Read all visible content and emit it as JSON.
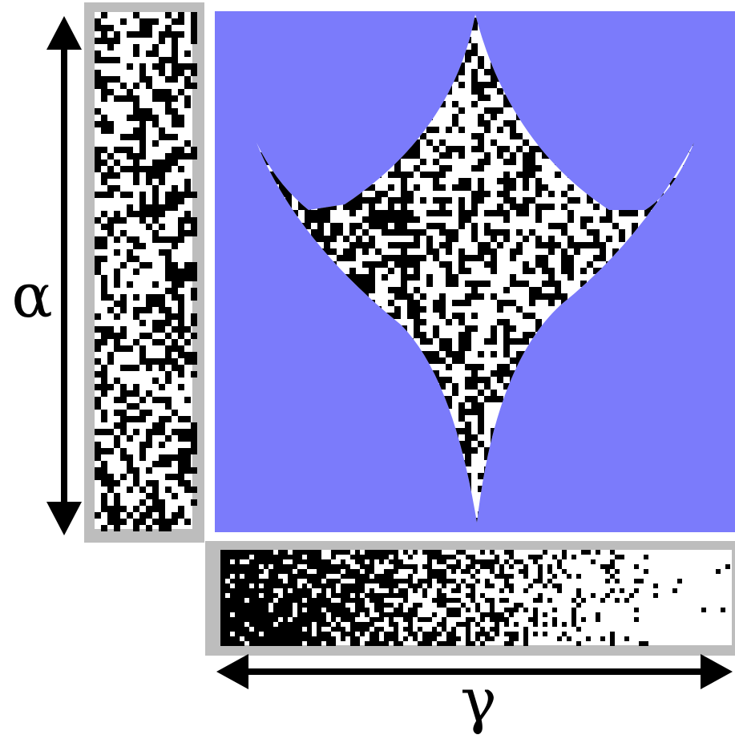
{
  "labels": {
    "vertical_axis": "α",
    "horizontal_axis": "γ"
  }
}
